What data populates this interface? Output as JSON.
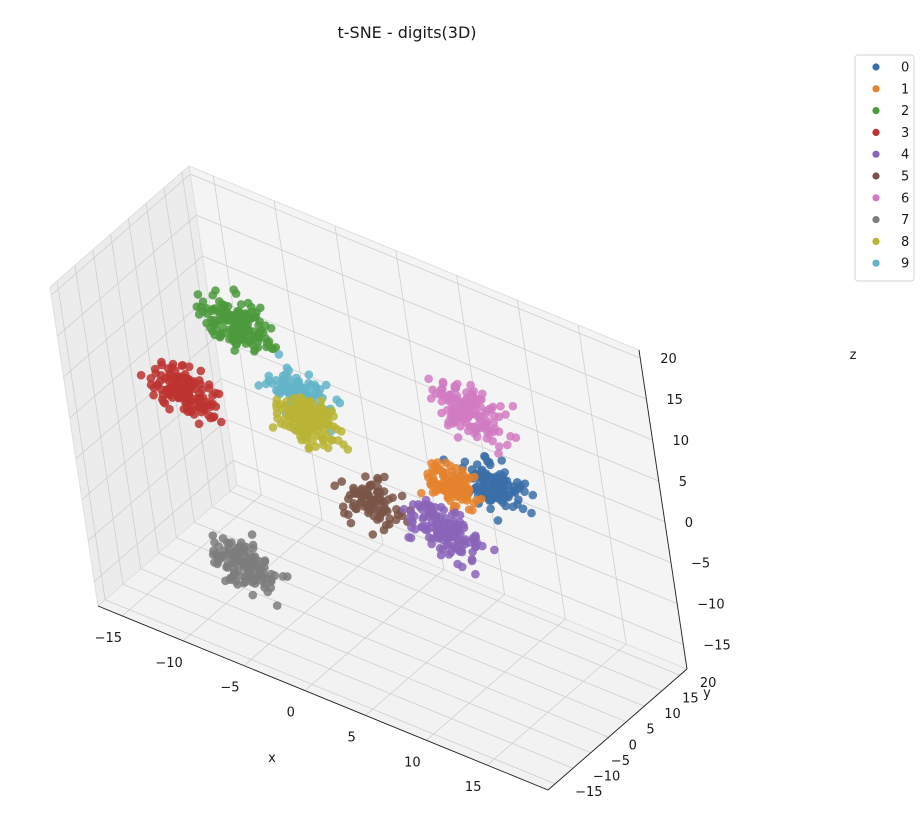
{
  "chart_data": {
    "type": "scatter",
    "projection": "3d",
    "title": "t-SNE - digits(3D)",
    "xlabel": "x",
    "ylabel": "y",
    "zlabel": "z",
    "xlim": [
      -17,
      20
    ],
    "ylim": [
      -17,
      22
    ],
    "zlim": [
      -18,
      21
    ],
    "xticks": [
      -15,
      -10,
      -5,
      0,
      5,
      10,
      15
    ],
    "yticks": [
      -15,
      -10,
      -5,
      0,
      5,
      10,
      15,
      20
    ],
    "zticks": [
      -15,
      -10,
      -5,
      0,
      5,
      10,
      15,
      20
    ],
    "grid": true,
    "legend_position": "upper-right-outside",
    "series": [
      {
        "name": "0",
        "color": "#3b6fa8",
        "center": [
          7.5,
          16,
          -1
        ],
        "spread": 1.8,
        "count": 120
      },
      {
        "name": "1",
        "color": "#e5822e",
        "center": [
          11,
          -3,
          8
        ],
        "spread": 1.6,
        "count": 100
      },
      {
        "name": "2",
        "color": "#4c9a3d",
        "center": [
          -10,
          8,
          11
        ],
        "spread": 2.0,
        "count": 150
      },
      {
        "name": "3",
        "color": "#bd3430",
        "center": [
          -13,
          1,
          4
        ],
        "spread": 1.8,
        "count": 140
      },
      {
        "name": "4",
        "color": "#8a64b8",
        "center": [
          13,
          -13,
          8
        ],
        "spread": 2.0,
        "count": 130
      },
      {
        "name": "5",
        "color": "#7a5548",
        "center": [
          6,
          -10,
          6
        ],
        "spread": 1.7,
        "count": 90
      },
      {
        "name": "6",
        "color": "#d17bc2",
        "center": [
          6,
          17,
          7
        ],
        "spread": 2.0,
        "count": 140
      },
      {
        "name": "7",
        "color": "#7d7d7d",
        "center": [
          -6,
          -10,
          -9
        ],
        "spread": 1.8,
        "count": 120
      },
      {
        "name": "8",
        "color": "#bab435",
        "center": [
          -1,
          -3,
          9
        ],
        "spread": 1.8,
        "count": 150
      },
      {
        "name": "9",
        "color": "#63b4c9",
        "center": [
          -5,
          7,
          6
        ],
        "spread": 1.8,
        "count": 120
      }
    ]
  }
}
